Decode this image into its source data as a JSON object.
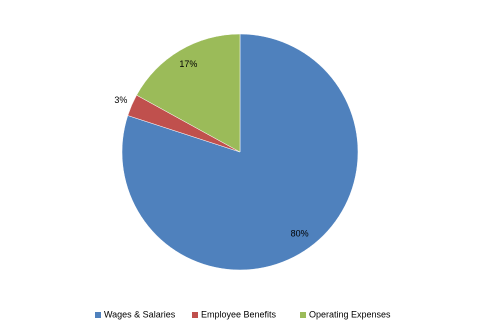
{
  "chart_data": {
    "type": "pie",
    "categories": [
      "Wages & Salaries",
      "Employee Benefits",
      "Operating Expenses"
    ],
    "values": [
      80,
      3,
      17
    ],
    "value_labels": [
      "80%",
      "3%",
      "17%"
    ],
    "colors": [
      "#4f81bd",
      "#c0504d",
      "#9bbb59"
    ],
    "legend": "bottom"
  }
}
